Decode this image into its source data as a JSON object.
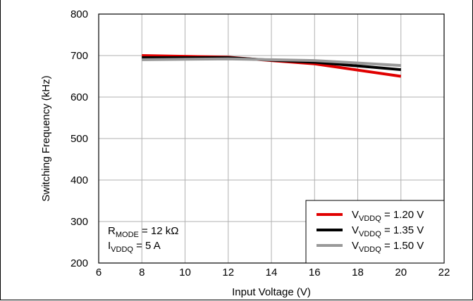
{
  "chart_data": {
    "type": "line",
    "title": "",
    "xlabel": "Input Voltage (V)",
    "ylabel": "Switching Frequency (kHz)",
    "xlim": [
      6,
      22
    ],
    "ylim": [
      200,
      800
    ],
    "x_ticks": [
      6,
      8,
      10,
      12,
      14,
      16,
      18,
      20,
      22
    ],
    "y_ticks": [
      200,
      300,
      400,
      500,
      600,
      700,
      800
    ],
    "grid": true,
    "legend_position": "bottom-right",
    "series": [
      {
        "name_main": "V",
        "name_sub": "VDDQ",
        "name_rest": " = 1.20 V",
        "color": "#e00000",
        "x": [
          8,
          10,
          12,
          14,
          16,
          18,
          20
        ],
        "y": [
          700,
          698,
          696,
          688,
          680,
          665,
          650
        ]
      },
      {
        "name_main": "V",
        "name_sub": "VDDQ",
        "name_rest": " = 1.35 V",
        "color": "#000000",
        "x": [
          8,
          10,
          12,
          14,
          16,
          18,
          20
        ],
        "y": [
          695,
          695,
          695,
          689,
          684,
          675,
          666
        ]
      },
      {
        "name_main": "V",
        "name_sub": "VDDQ",
        "name_rest": " = 1.50 V",
        "color": "#999999",
        "x": [
          8,
          10,
          12,
          14,
          16,
          18,
          20
        ],
        "y": [
          690,
          691,
          692,
          690,
          688,
          682,
          676
        ]
      }
    ],
    "annotations": [
      {
        "main": "R",
        "sub": "MODE",
        "rest": " = 12 kΩ"
      },
      {
        "main": "I",
        "sub": "VDDQ",
        "rest": " = 5 A"
      }
    ]
  }
}
